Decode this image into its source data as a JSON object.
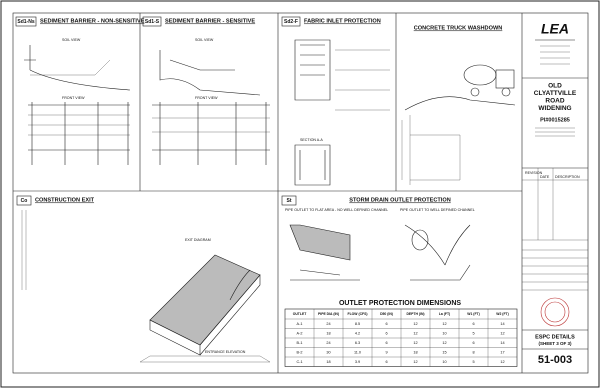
{
  "panels": {
    "sd1ns": {
      "code": "Sd1-Ns",
      "title": "SEDIMENT BARRIER - NON-SENSITIVE",
      "labels": [
        "SOIL VIEW",
        "FRONT VIEW"
      ]
    },
    "sd1s": {
      "code": "Sd1-S",
      "title": "SEDIMENT BARRIER - SENSITIVE",
      "labels": [
        "SOIL VIEW",
        "FRONT VIEW"
      ]
    },
    "sd2f": {
      "code": "Sd2-F",
      "title": "FABRIC INLET PROTECTION",
      "labels": [
        "SECTION A-A"
      ]
    },
    "truck": {
      "title": "CONCRETE TRUCK WASHDOWN"
    },
    "co": {
      "code": "Co",
      "title": "CONSTRUCTION EXIT",
      "labels": [
        "EXIT DIAGRAM",
        "ENTRANCE ELEVATION"
      ]
    },
    "st": {
      "code": "St",
      "title": "STORM DRAIN OUTLET PROTECTION",
      "labels": [
        "PIPE OUTLET TO FLAT AREA - NO WELL DEFINED CHANNEL",
        "PIPE OUTLET TO WELL DEFINED CHANNEL"
      ]
    }
  },
  "table": {
    "title": "OUTLET PROTECTION DIMENSIONS",
    "headers": [
      "OUTLET",
      "PIPE DIA (IN)",
      "FLOW (CFS)",
      "D50 (IN)",
      "DEPTH (IN)",
      "La (FT)",
      "W1 (FT)",
      "W2 (FT)"
    ],
    "rows": [
      [
        "A-1",
        "24",
        "8.5",
        "6",
        "12",
        "12",
        "6",
        "14"
      ],
      [
        "A-2",
        "18",
        "4.2",
        "6",
        "12",
        "10",
        "5",
        "12"
      ],
      [
        "B-1",
        "24",
        "6.3",
        "6",
        "12",
        "12",
        "6",
        "14"
      ],
      [
        "B-2",
        "30",
        "11.0",
        "9",
        "18",
        "15",
        "8",
        "17"
      ],
      [
        "C-1",
        "18",
        "3.9",
        "6",
        "12",
        "10",
        "5",
        "12"
      ]
    ]
  },
  "title_block": {
    "firm": "LEA",
    "project": [
      "OLD",
      "CLYATTVILLE",
      "ROAD",
      "WIDENING"
    ],
    "pi": "PI#0015285",
    "revision_headers": [
      "REVISION",
      "DATE",
      "DESCRIPTION"
    ],
    "sheet_title": "ESPC DETAILS",
    "sheet_of": "(SHEET 3 OF 3)",
    "sheet_number": "51-003"
  }
}
